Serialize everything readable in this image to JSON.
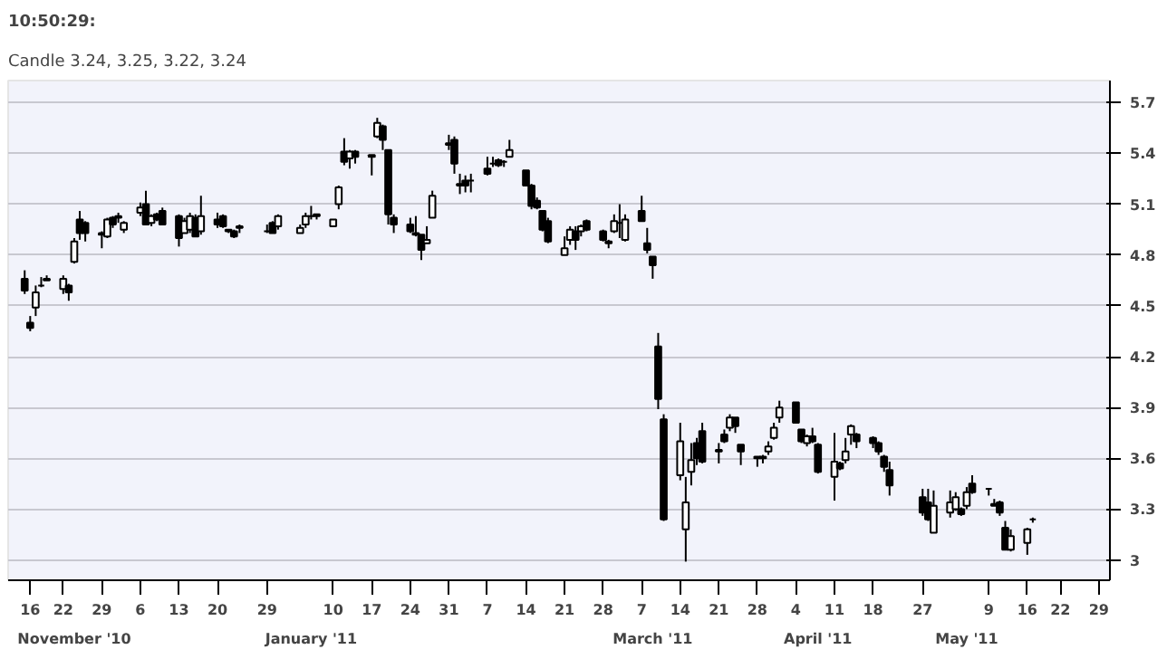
{
  "chart_data": {
    "type": "candlestick",
    "title": "10:50:29:",
    "subtitle": "Candle 3.24, 3.25, 3.22, 3.24",
    "x": [
      "2010-11-15",
      "2010-11-16",
      "2010-11-17",
      "2010-11-18",
      "2010-11-19",
      "2010-11-22",
      "2010-11-23",
      "2010-11-24",
      "2010-11-25",
      "2010-11-26",
      "2010-11-29",
      "2010-11-30",
      "2010-12-01",
      "2010-12-02",
      "2010-12-03",
      "2010-12-06",
      "2010-12-07",
      "2010-12-08",
      "2010-12-09",
      "2010-12-10",
      "2010-12-13",
      "2010-12-14",
      "2010-12-15",
      "2010-12-16",
      "2010-12-17",
      "2010-12-20",
      "2010-12-21",
      "2010-12-22",
      "2010-12-23",
      "2010-12-24",
      "2010-12-29",
      "2010-12-30",
      "2010-12-31",
      "2011-01-04",
      "2011-01-05",
      "2011-01-06",
      "2011-01-07",
      "2011-01-10",
      "2011-01-11",
      "2011-01-12",
      "2011-01-13",
      "2011-01-14",
      "2011-01-17",
      "2011-01-18",
      "2011-01-19",
      "2011-01-20",
      "2011-01-21",
      "2011-01-24",
      "2011-01-25",
      "2011-01-26",
      "2011-01-27",
      "2011-01-28",
      "2011-01-31",
      "2011-02-01",
      "2011-02-02",
      "2011-02-03",
      "2011-02-04",
      "2011-02-07",
      "2011-02-08",
      "2011-02-09",
      "2011-02-10",
      "2011-02-11",
      "2011-02-14",
      "2011-02-15",
      "2011-02-16",
      "2011-02-17",
      "2011-02-18",
      "2011-02-21",
      "2011-02-22",
      "2011-02-23",
      "2011-02-24",
      "2011-02-25",
      "2011-02-28",
      "2011-03-01",
      "2011-03-02",
      "2011-03-03",
      "2011-03-04",
      "2011-03-07",
      "2011-03-08",
      "2011-03-09",
      "2011-03-10",
      "2011-03-11",
      "2011-03-14",
      "2011-03-15",
      "2011-03-16",
      "2011-03-17",
      "2011-03-18",
      "2011-03-21",
      "2011-03-22",
      "2011-03-23",
      "2011-03-24",
      "2011-03-25",
      "2011-03-28",
      "2011-03-29",
      "2011-03-30",
      "2011-03-31",
      "2011-04-01",
      "2011-04-04",
      "2011-04-05",
      "2011-04-06",
      "2011-04-07",
      "2011-04-08",
      "2011-04-11",
      "2011-04-12",
      "2011-04-13",
      "2011-04-14",
      "2011-04-15",
      "2011-04-18",
      "2011-04-19",
      "2011-04-20",
      "2011-04-21",
      "2011-04-27",
      "2011-04-28",
      "2011-04-29",
      "2011-05-02",
      "2011-05-03",
      "2011-05-04",
      "2011-05-05",
      "2011-05-06",
      "2011-05-09",
      "2011-05-10",
      "2011-05-11",
      "2011-05-12",
      "2011-05-13",
      "2011-05-16",
      "2011-05-17"
    ],
    "ohlc": [
      [
        4.66,
        4.71,
        4.57,
        4.59
      ],
      [
        4.4,
        4.44,
        4.35,
        4.37
      ],
      [
        4.49,
        4.62,
        4.44,
        4.58
      ],
      [
        4.62,
        4.67,
        4.61,
        4.62
      ],
      [
        4.66,
        4.68,
        4.65,
        4.65
      ],
      [
        4.6,
        4.68,
        4.57,
        4.66
      ],
      [
        4.62,
        4.63,
        4.53,
        4.58
      ],
      [
        4.76,
        4.9,
        4.75,
        4.88
      ],
      [
        5.01,
        5.06,
        4.89,
        4.93
      ],
      [
        4.99,
        5.0,
        4.88,
        4.93
      ],
      [
        4.93,
        4.94,
        4.84,
        4.92
      ],
      [
        4.91,
        5.02,
        4.9,
        5.01
      ],
      [
        5.02,
        5.03,
        4.96,
        4.98
      ],
      [
        5.02,
        5.05,
        4.99,
        5.03
      ],
      [
        4.95,
        5.0,
        4.93,
        4.99
      ],
      [
        5.05,
        5.11,
        5.03,
        5.08
      ],
      [
        5.1,
        5.18,
        4.98,
        4.98
      ],
      [
        4.99,
        5.04,
        4.97,
        5.03
      ],
      [
        5.04,
        5.05,
        5.0,
        5.01
      ],
      [
        5.06,
        5.08,
        4.98,
        4.98
      ],
      [
        5.03,
        5.04,
        4.85,
        4.9
      ],
      [
        4.93,
        5.02,
        4.93,
        5.0
      ],
      [
        4.95,
        5.05,
        4.93,
        5.03
      ],
      [
        5.02,
        5.04,
        4.91,
        4.91
      ],
      [
        4.94,
        5.15,
        4.92,
        5.03
      ],
      [
        5.01,
        5.05,
        4.96,
        4.98
      ],
      [
        5.03,
        5.04,
        4.96,
        4.97
      ],
      [
        4.95,
        4.95,
        4.93,
        4.94
      ],
      [
        4.94,
        4.95,
        4.9,
        4.91
      ],
      [
        4.96,
        4.98,
        4.93,
        4.97
      ],
      [
        4.94,
        4.98,
        4.93,
        4.94
      ],
      [
        4.99,
        5.0,
        4.93,
        4.93
      ],
      [
        4.97,
        5.04,
        4.95,
        5.03
      ],
      [
        4.93,
        4.98,
        4.93,
        4.96
      ],
      [
        4.98,
        5.05,
        4.96,
        5.03
      ],
      [
        5.03,
        5.09,
        5.01,
        5.03
      ],
      [
        5.04,
        5.04,
        5.01,
        5.03
      ],
      [
        4.97,
        5.01,
        4.97,
        5.01
      ],
      [
        5.1,
        5.21,
        5.07,
        5.2
      ],
      [
        5.41,
        5.49,
        5.33,
        5.35
      ],
      [
        5.37,
        5.42,
        5.31,
        5.41
      ],
      [
        5.41,
        5.42,
        5.34,
        5.38
      ],
      [
        5.39,
        5.39,
        5.27,
        5.38
      ],
      [
        5.5,
        5.61,
        5.49,
        5.58
      ],
      [
        5.56,
        5.57,
        5.42,
        5.48
      ],
      [
        5.42,
        5.42,
        4.98,
        5.04
      ],
      [
        5.02,
        5.04,
        4.93,
        4.98
      ],
      [
        4.98,
        5.02,
        4.93,
        4.94
      ],
      [
        4.93,
        5.03,
        4.91,
        4.92
      ],
      [
        4.92,
        4.92,
        4.77,
        4.83
      ],
      [
        4.87,
        4.97,
        4.87,
        4.89
      ],
      [
        5.02,
        5.18,
        5.02,
        5.15
      ],
      [
        5.46,
        5.51,
        5.42,
        5.45
      ],
      [
        5.48,
        5.5,
        5.28,
        5.34
      ],
      [
        5.22,
        5.28,
        5.16,
        5.21
      ],
      [
        5.24,
        5.27,
        5.17,
        5.21
      ],
      [
        5.24,
        5.28,
        5.17,
        5.24
      ],
      [
        5.31,
        5.38,
        5.27,
        5.28
      ],
      [
        5.34,
        5.38,
        5.32,
        5.34
      ],
      [
        5.36,
        5.37,
        5.32,
        5.33
      ],
      [
        5.35,
        5.36,
        5.32,
        5.35
      ],
      [
        5.38,
        5.48,
        5.38,
        5.42
      ],
      [
        5.3,
        5.3,
        5.21,
        5.21
      ],
      [
        5.21,
        5.22,
        5.07,
        5.09
      ],
      [
        5.12,
        5.14,
        5.07,
        5.08
      ],
      [
        5.06,
        5.06,
        4.94,
        4.95
      ],
      [
        5.0,
        5.02,
        4.87,
        4.88
      ],
      [
        4.8,
        4.91,
        4.8,
        4.84
      ],
      [
        4.89,
        4.97,
        4.86,
        4.95
      ],
      [
        4.94,
        4.97,
        4.83,
        4.89
      ],
      [
        4.94,
        4.98,
        4.91,
        4.97
      ],
      [
        5.0,
        5.01,
        4.94,
        4.95
      ],
      [
        4.94,
        4.95,
        4.88,
        4.89
      ],
      [
        4.88,
        4.89,
        4.84,
        4.87
      ],
      [
        4.94,
        5.04,
        4.93,
        5.0
      ],
      [
        4.99,
        5.1,
        4.9,
        4.99
      ],
      [
        4.89,
        5.04,
        4.88,
        5.01
      ],
      [
        5.06,
        5.15,
        5.0,
        5.0
      ],
      [
        4.87,
        4.96,
        4.81,
        4.83
      ],
      [
        4.79,
        4.79,
        4.66,
        4.74
      ],
      [
        4.26,
        4.34,
        3.89,
        3.95
      ],
      [
        3.83,
        3.86,
        3.23,
        3.24
      ],
      [
        3.5,
        3.81,
        3.47,
        3.7
      ],
      [
        3.18,
        3.49,
        2.99,
        3.34
      ],
      [
        3.52,
        3.69,
        3.44,
        3.59
      ],
      [
        3.69,
        3.72,
        3.56,
        3.6
      ],
      [
        3.76,
        3.81,
        3.57,
        3.58
      ],
      [
        3.65,
        3.69,
        3.57,
        3.64
      ],
      [
        3.74,
        3.77,
        3.69,
        3.7
      ],
      [
        3.78,
        3.86,
        3.76,
        3.84
      ],
      [
        3.84,
        3.84,
        3.75,
        3.79
      ],
      [
        3.68,
        3.68,
        3.56,
        3.64
      ],
      [
        3.61,
        3.61,
        3.55,
        3.6
      ],
      [
        3.61,
        3.62,
        3.57,
        3.6
      ],
      [
        3.64,
        3.7,
        3.62,
        3.67
      ],
      [
        3.72,
        3.81,
        3.71,
        3.78
      ],
      [
        3.84,
        3.94,
        3.81,
        3.9
      ],
      [
        3.93,
        3.93,
        3.81,
        3.81
      ],
      [
        3.77,
        3.77,
        3.69,
        3.7
      ],
      [
        3.69,
        3.74,
        3.67,
        3.73
      ],
      [
        3.73,
        3.78,
        3.69,
        3.7
      ],
      [
        3.68,
        3.69,
        3.51,
        3.52
      ],
      [
        3.49,
        3.75,
        3.35,
        3.58
      ],
      [
        3.57,
        3.58,
        3.53,
        3.54
      ],
      [
        3.59,
        3.72,
        3.57,
        3.64
      ],
      [
        3.74,
        3.8,
        3.68,
        3.79
      ],
      [
        3.74,
        3.75,
        3.66,
        3.7
      ],
      [
        3.72,
        3.73,
        3.66,
        3.69
      ],
      [
        3.69,
        3.7,
        3.62,
        3.64
      ],
      [
        3.61,
        3.62,
        3.52,
        3.55
      ],
      [
        3.53,
        3.58,
        3.38,
        3.44
      ],
      [
        3.37,
        3.42,
        3.26,
        3.28
      ],
      [
        3.34,
        3.42,
        3.23,
        3.24
      ],
      [
        3.16,
        3.41,
        3.16,
        3.32
      ],
      [
        3.28,
        3.41,
        3.25,
        3.34
      ],
      [
        3.3,
        3.4,
        3.29,
        3.37
      ],
      [
        3.3,
        3.31,
        3.26,
        3.27
      ],
      [
        3.32,
        3.43,
        3.3,
        3.4
      ],
      [
        3.45,
        3.5,
        3.39,
        3.4
      ],
      [
        3.42,
        3.42,
        3.38,
        3.42
      ],
      [
        3.33,
        3.36,
        3.32,
        3.32
      ],
      [
        3.34,
        3.35,
        3.26,
        3.28
      ],
      [
        3.19,
        3.23,
        3.06,
        3.06
      ],
      [
        3.06,
        3.18,
        3.05,
        3.14
      ],
      [
        3.1,
        3.19,
        3.03,
        3.18
      ],
      [
        3.24,
        3.25,
        3.22,
        3.24
      ]
    ],
    "xlim": [
      "2010-11-12",
      "2011-05-31"
    ],
    "xticks": [
      {
        "value": "2010-11-16",
        "label": "16"
      },
      {
        "value": "2010-11-22",
        "label": "22"
      },
      {
        "value": "2010-11-29",
        "label": "29"
      },
      {
        "value": "2010-12-06",
        "label": "6"
      },
      {
        "value": "2010-12-13",
        "label": "13"
      },
      {
        "value": "2010-12-20",
        "label": "20"
      },
      {
        "value": "2010-12-29",
        "label": "29"
      },
      {
        "value": "2011-01-10",
        "label": "10"
      },
      {
        "value": "2011-01-17",
        "label": "17"
      },
      {
        "value": "2011-01-24",
        "label": "24"
      },
      {
        "value": "2011-01-31",
        "label": "31"
      },
      {
        "value": "2011-02-07",
        "label": "7"
      },
      {
        "value": "2011-02-14",
        "label": "14"
      },
      {
        "value": "2011-02-21",
        "label": "21"
      },
      {
        "value": "2011-02-28",
        "label": "28"
      },
      {
        "value": "2011-03-07",
        "label": "7"
      },
      {
        "value": "2011-03-14",
        "label": "14"
      },
      {
        "value": "2011-03-21",
        "label": "21"
      },
      {
        "value": "2011-03-28",
        "label": "28"
      },
      {
        "value": "2011-04-04",
        "label": "4"
      },
      {
        "value": "2011-04-11",
        "label": "11"
      },
      {
        "value": "2011-04-18",
        "label": "18"
      },
      {
        "value": "2011-04-27",
        "label": "27"
      },
      {
        "value": "2011-05-09",
        "label": "9"
      },
      {
        "value": "2011-05-16",
        "label": "16"
      },
      {
        "value": "2011-05-22",
        "label": "22"
      },
      {
        "value": "2011-05-29",
        "label": "29"
      }
    ],
    "ylim": [
      2.88,
      5.83
    ],
    "yticks": [
      {
        "value": 3,
        "label": "3"
      },
      {
        "value": 3.3,
        "label": "3.3"
      },
      {
        "value": 3.6,
        "label": "3.6"
      },
      {
        "value": 3.9,
        "label": "3.9"
      },
      {
        "value": 4.2,
        "label": "4.2"
      },
      {
        "value": 4.5,
        "label": "4.5"
      },
      {
        "value": 4.8,
        "label": "4.8"
      },
      {
        "value": 5.1,
        "label": "5.1"
      },
      {
        "value": 5.4,
        "label": "5.4"
      },
      {
        "value": 5.7,
        "label": "5.7"
      }
    ],
    "grid": "y",
    "x2lim": [
      "2010-11-12",
      "2011-05-31"
    ],
    "x2ticks": [
      {
        "value": "2010-11-24",
        "label": "November '10"
      },
      {
        "value": "2011-01-06",
        "label": "January '11"
      },
      {
        "value": "2011-03-09",
        "label": "March '11"
      },
      {
        "value": "2011-04-08",
        "label": "April '11"
      },
      {
        "value": "2011-05-05",
        "label": "May '11"
      }
    ]
  }
}
